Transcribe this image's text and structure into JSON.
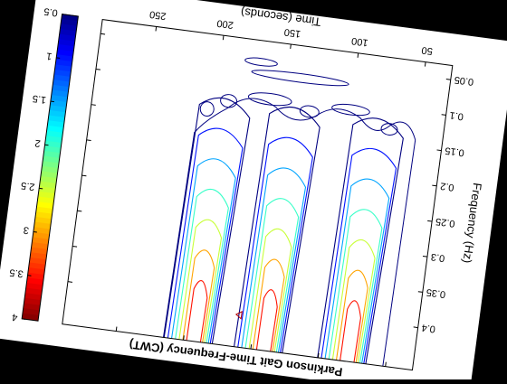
{
  "chart_data": {
    "type": "contour",
    "title": "Parkinson Gait Time-Frequency (CWT)",
    "xlabel": "Time (seconds)",
    "ylabel": "Frequency (Hz)",
    "x_ticks": [
      50,
      100,
      150,
      200,
      250
    ],
    "y_ticks": [
      0.05,
      0.1,
      0.15,
      0.2,
      0.25,
      0.3,
      0.35,
      0.4
    ],
    "colorbar": {
      "ticks": [
        0.5,
        1,
        1.5,
        2,
        2.5,
        3,
        3.5,
        4
      ],
      "tick_labels": [
        "0.5",
        "1",
        "1.5",
        "2",
        "2.5",
        "3",
        "3.5",
        "4"
      ],
      "min": 0.5,
      "max": 4,
      "colormap": "jet"
    },
    "peaks": [
      {
        "x": 78,
        "y": 0.45,
        "value": 4
      },
      {
        "x": 140,
        "y": 0.45,
        "value": 4
      },
      {
        "x": 192,
        "y": 0.45,
        "value": 4
      }
    ],
    "contour_levels": [
      0.5,
      1.0,
      1.5,
      2.0,
      2.5,
      3.0,
      3.5
    ],
    "grid": false,
    "legend": "colorbar-left"
  }
}
